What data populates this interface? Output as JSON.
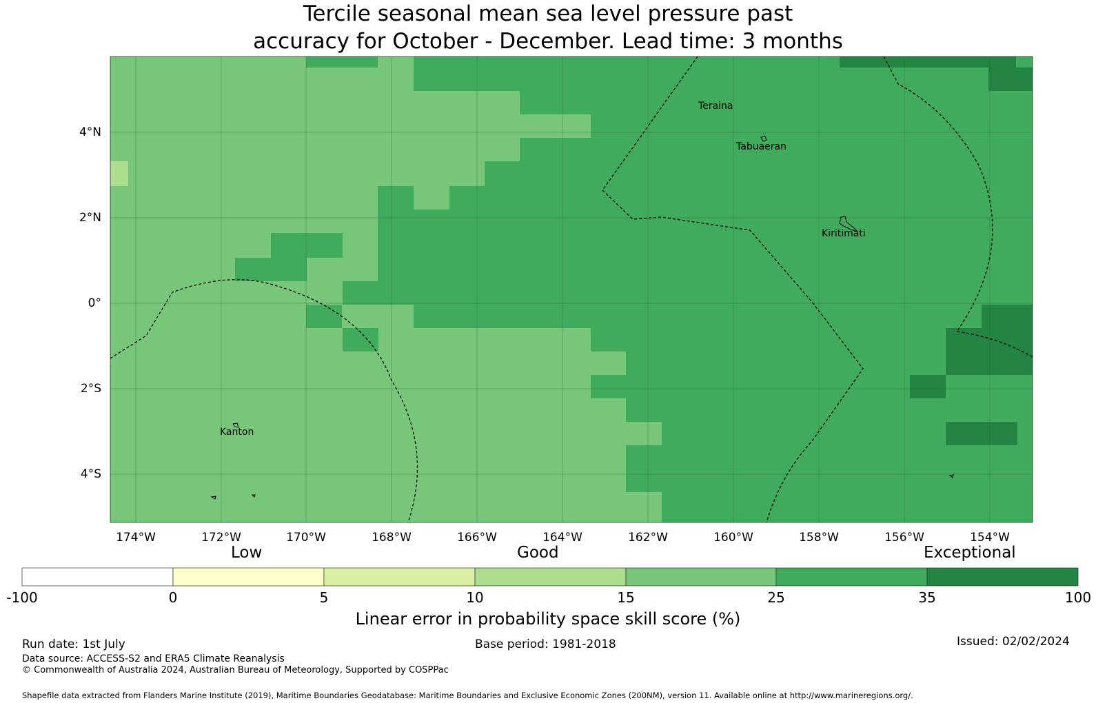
{
  "title_line1": "Tercile seasonal mean sea level pressure past",
  "title_line2": "accuracy for October - December. Lead time: 3 months",
  "colors": {
    "c15": "#78c679",
    "c25": "#41ab5d",
    "c35": "#238443",
    "c10": "#addd8e",
    "grid": "#2a4a2a",
    "border": "#000000"
  },
  "x_ticks": [
    "174°W",
    "172°W",
    "170°W",
    "168°W",
    "166°W",
    "164°W",
    "162°W",
    "160°W",
    "158°W",
    "156°W",
    "154°W"
  ],
  "y_ticks": [
    "4°N",
    "2°N",
    "0°",
    "2°S",
    "4°S"
  ],
  "places": {
    "teraina": "Teraina",
    "tabuaeran": "Tabuaeran",
    "kiritimati": "Kiritimati",
    "kanton": "Kanton"
  },
  "colorbar": {
    "words": [
      "Low",
      "Good",
      "Exceptional"
    ],
    "ticks": [
      "-100",
      "0",
      "5",
      "10",
      "15",
      "25",
      "35",
      "100"
    ],
    "colors": [
      "#ffffff",
      "#ffffcc",
      "#d9f0a3",
      "#addd8e",
      "#78c679",
      "#41ab5d",
      "#238443"
    ],
    "label": "Linear error in probability space skill score (%)"
  },
  "footer": {
    "run_date": "Run date: 1st July",
    "base_period": "Base period: 1981-2018",
    "issued": "Issued: 02/02/2024",
    "data_source": "Data source: ACCESS-S2 and ERA5 Climate Reanalysis",
    "copyright": "© Commonwealth of Australia 2024, Australian Bureau of Meteorology, Supported by COSPPac",
    "shapefile": "Shapefile data extracted from Flanders Marine Institute (2019), Maritime Boundaries Geodatabase: Maritime Boundaries and Exclusive Economic Zones (200NM), version 11. Available online at http://www.marineregions.org/."
  }
}
